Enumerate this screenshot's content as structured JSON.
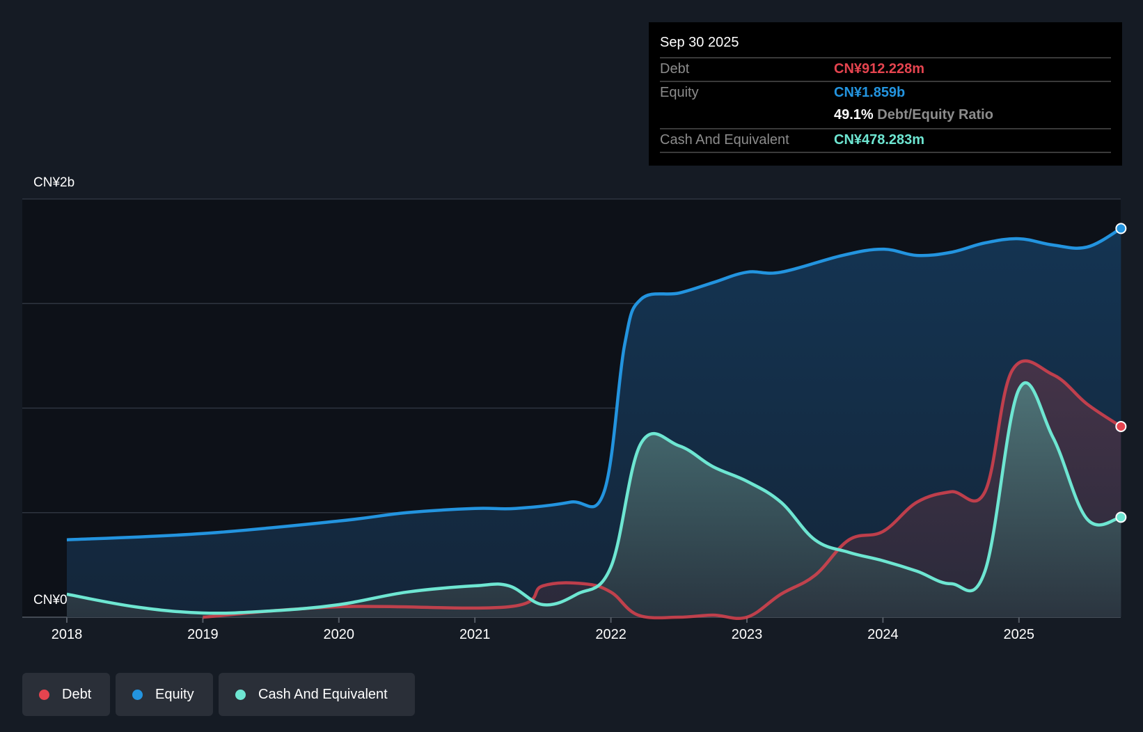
{
  "tooltip": {
    "date": "Sep 30 2025",
    "debt_label": "Debt",
    "debt_value": "CN¥912.228m",
    "equity_label": "Equity",
    "equity_value": "CN¥1.859b",
    "ratio_value": "49.1%",
    "ratio_label": "Debt/Equity Ratio",
    "cash_label": "Cash And Equivalent",
    "cash_value": "CN¥478.283m"
  },
  "legend": [
    "Debt",
    "Equity",
    "Cash And Equivalent"
  ],
  "colors": {
    "debt": "#e5444f",
    "equity": "#2394df",
    "cash": "#6ee6d2"
  },
  "chart_data": {
    "type": "area",
    "yunit": "CN¥ billions",
    "ylim": [
      0,
      2
    ],
    "ytick_labels": [
      "CN¥2b",
      "CN¥0"
    ],
    "xlim": [
      2017.7,
      2025.75
    ],
    "xticks": [
      "2018",
      "2019",
      "2020",
      "2021",
      "2022",
      "2023",
      "2024",
      "2025"
    ],
    "series": [
      {
        "name": "Equity",
        "x": [
          2018,
          2019,
          2020,
          2020.5,
          2021,
          2021.3,
          2021.7,
          2021.95,
          2022.1,
          2022.22,
          2022.5,
          2022.75,
          2023,
          2023.25,
          2023.7,
          2024,
          2024.25,
          2024.5,
          2024.75,
          2025,
          2025.25,
          2025.5,
          2025.75
        ],
        "y": [
          0.37,
          0.4,
          0.46,
          0.5,
          0.52,
          0.52,
          0.55,
          0.6,
          1.3,
          1.52,
          1.55,
          1.6,
          1.65,
          1.65,
          1.73,
          1.76,
          1.73,
          1.745,
          1.79,
          1.81,
          1.78,
          1.77,
          1.859
        ]
      },
      {
        "name": "Debt",
        "x": [
          2019,
          2020,
          2021.25,
          2021.5,
          2021.8,
          2022,
          2022.2,
          2022.5,
          2022.75,
          2023,
          2023.25,
          2023.5,
          2023.75,
          2024,
          2024.25,
          2024.5,
          2024.75,
          2024.95,
          2025.25,
          2025.5,
          2025.75
        ],
        "y": [
          0.0,
          0.05,
          0.05,
          0.15,
          0.16,
          0.12,
          0.01,
          0.0,
          0.01,
          0.0,
          0.11,
          0.2,
          0.37,
          0.41,
          0.55,
          0.6,
          0.6,
          1.18,
          1.16,
          1.02,
          0.912
        ]
      },
      {
        "name": "Cash And Equivalent",
        "x": [
          2018,
          2018.5,
          2019,
          2019.5,
          2020,
          2020.5,
          2021,
          2021.25,
          2021.5,
          2021.75,
          2022,
          2022.22,
          2022.5,
          2022.75,
          2023,
          2023.25,
          2023.5,
          2023.75,
          2024,
          2024.25,
          2024.5,
          2024.75,
          2025,
          2025.25,
          2025.5,
          2025.75
        ],
        "y": [
          0.11,
          0.05,
          0.02,
          0.03,
          0.06,
          0.12,
          0.15,
          0.15,
          0.06,
          0.11,
          0.24,
          0.83,
          0.82,
          0.72,
          0.65,
          0.55,
          0.37,
          0.31,
          0.27,
          0.22,
          0.16,
          0.22,
          1.09,
          0.86,
          0.47,
          0.478
        ]
      }
    ]
  }
}
